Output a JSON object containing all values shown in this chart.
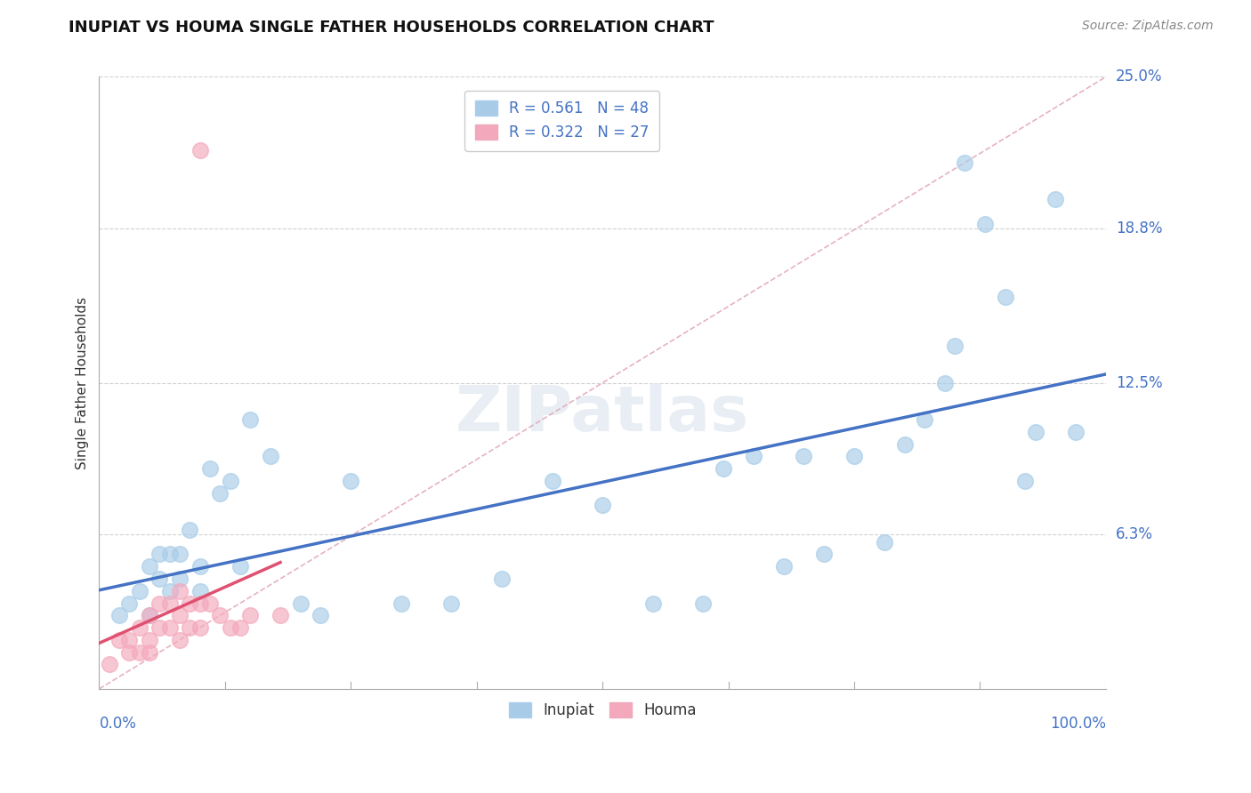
{
  "title": "INUPIAT VS HOUMA SINGLE FATHER HOUSEHOLDS CORRELATION CHART",
  "source": "Source: ZipAtlas.com",
  "ylabel": "Single Father Households",
  "watermark": "ZIPatlas",
  "legend": {
    "inupiat_R": 0.561,
    "inupiat_N": 48,
    "houma_R": 0.322,
    "houma_N": 27
  },
  "xlim": [
    0.0,
    100.0
  ],
  "ylim": [
    0.0,
    25.0
  ],
  "yticks": [
    6.3,
    12.5,
    18.8,
    25.0
  ],
  "xtick_labels_left": "0.0%",
  "xtick_labels_right": "100.0%",
  "inupiat_color": "#a8cce8",
  "houma_color": "#f4a8bc",
  "inupiat_line_color": "#4472c4",
  "houma_line_color": "#e05070",
  "dash_color": "#e0a0b0",
  "inupiat_x": [
    2,
    3,
    4,
    5,
    5,
    6,
    6,
    7,
    7,
    8,
    8,
    9,
    10,
    10,
    11,
    12,
    13,
    14,
    15,
    17,
    20,
    22,
    25,
    30,
    35,
    40,
    45,
    50,
    55,
    60,
    62,
    65,
    68,
    70,
    72,
    75,
    78,
    80,
    82,
    84,
    85,
    86,
    88,
    90,
    92,
    93,
    95,
    97
  ],
  "inupiat_y": [
    3.0,
    3.5,
    4.0,
    5.0,
    3.0,
    4.5,
    5.5,
    4.0,
    5.5,
    4.5,
    5.5,
    6.5,
    5.0,
    4.0,
    9.0,
    8.0,
    8.5,
    5.0,
    11.0,
    9.5,
    3.5,
    3.0,
    8.5,
    3.5,
    3.5,
    4.5,
    8.5,
    7.5,
    3.5,
    3.5,
    9.0,
    9.5,
    5.0,
    9.5,
    5.5,
    9.5,
    6.0,
    10.0,
    11.0,
    12.5,
    14.0,
    21.5,
    19.0,
    16.0,
    8.5,
    10.5,
    20.0,
    10.5
  ],
  "houma_x": [
    1,
    2,
    3,
    3,
    4,
    4,
    5,
    5,
    5,
    6,
    6,
    7,
    7,
    8,
    8,
    8,
    9,
    9,
    10,
    10,
    11,
    12,
    13,
    14,
    15,
    18,
    10
  ],
  "houma_y": [
    1.0,
    2.0,
    2.0,
    1.5,
    2.5,
    1.5,
    3.0,
    2.0,
    1.5,
    3.5,
    2.5,
    3.5,
    2.5,
    4.0,
    3.0,
    2.0,
    3.5,
    2.5,
    3.5,
    2.5,
    3.5,
    3.0,
    2.5,
    2.5,
    3.0,
    3.0,
    22.0
  ],
  "ytick_color": "#4472c4",
  "grid_color": "#cccccc",
  "title_fontsize": 13,
  "source_fontsize": 10,
  "axis_label_fontsize": 11,
  "tick_fontsize": 12
}
